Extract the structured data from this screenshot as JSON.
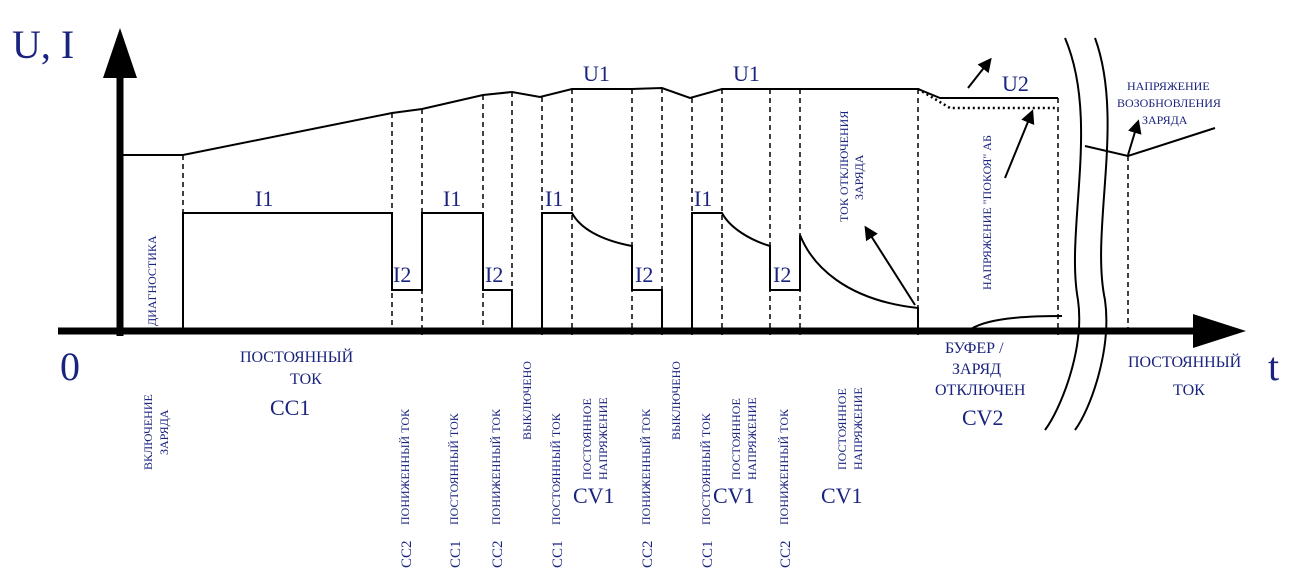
{
  "axes": {
    "y_label": "U, I",
    "x_label": "t",
    "origin": "0"
  },
  "levels": {
    "i1": "I1",
    "i2": "I2",
    "u1": "U1",
    "u2": "U2"
  },
  "in_plot": {
    "diagnostics": "ДИАГНОСТИКА",
    "cutoff_current_1": "ТОК ОТКЛЮЧЕНИЯ",
    "cutoff_current_2": "ЗАРЯДА",
    "rest_voltage": "НАПРЯЖЕНИЕ \"ПОКОЯ\" АБ",
    "resume_1": "НАПРЯЖЕНИЕ",
    "resume_2": "ВОЗОБНОВЛЕНИЯ",
    "resume_3": "ЗАРЯДА"
  },
  "below_axis": {
    "charge_on_1": "ВКЛЮЧЕНИЕ",
    "charge_on_2": "ЗАРЯДА",
    "const_current_1": "ПОСТОЯННЫЙ",
    "const_current_2": "ТОК",
    "cc1": "CC1",
    "buffer_1": "БУФЕР /",
    "buffer_2": "ЗАРЯД",
    "buffer_3": "ОТКЛЮЧЕН",
    "cv2": "CV2",
    "end_const_1": "ПОСТОЯННЫЙ",
    "end_const_2": "ТОК"
  },
  "phases": {
    "reduced_current": "ПОНИЖЕННЫЙ ТОК",
    "constant_current": "ПОСТОЯННЫЙ ТОК",
    "off": "ВЫКЛЮЧЕНО",
    "cv_1": "ПОСТОЯННОЕ",
    "cv_2": "НАПРЯЖЕНИЕ",
    "cc2": "CC2",
    "cc1": "CC1",
    "cv1": "CV1"
  }
}
